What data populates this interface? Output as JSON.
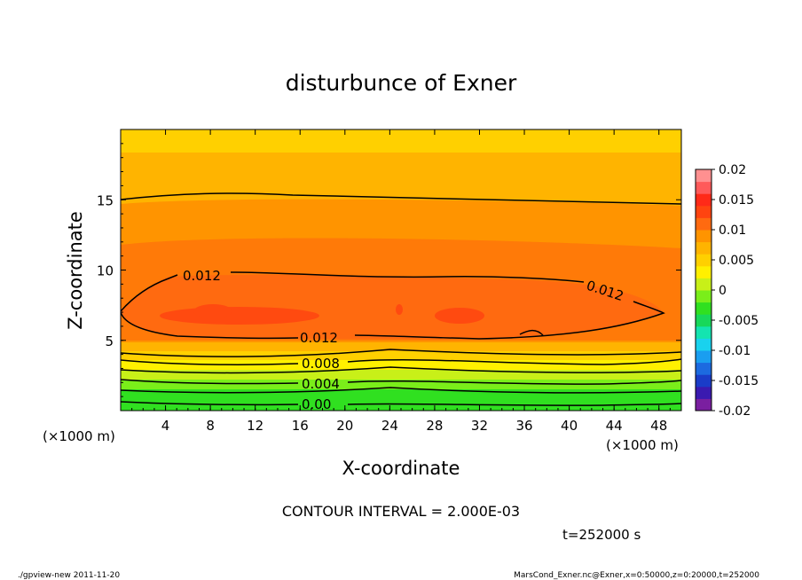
{
  "chart_data": {
    "type": "contour",
    "title": "disturbunce of Exner",
    "xlabel": "X-coordinate",
    "ylabel": "Z-coordinate",
    "x_unit_left": "(×1000 m)",
    "x_unit_right": "(×1000 m)",
    "xlim": [
      0,
      50
    ],
    "ylim": [
      0,
      20
    ],
    "x_ticks": [
      "4",
      "8",
      "12",
      "16",
      "20",
      "24",
      "28",
      "32",
      "36",
      "40",
      "44",
      "48"
    ],
    "y_ticks": [
      "5",
      "10",
      "15"
    ],
    "colorbar": {
      "ticks": [
        "0.02",
        "0.015",
        "0.01",
        "0.005",
        "0",
        "-0.005",
        "-0.01",
        "-0.015",
        "-0.02"
      ],
      "range": [
        -0.02,
        0.02
      ],
      "colors": [
        "#7a1fa0",
        "#3a1ab0",
        "#1a3cc8",
        "#1c6ae0",
        "#1a9ef0",
        "#19d2ee",
        "#14e4b0",
        "#18d85a",
        "#30e020",
        "#7aee1a",
        "#c8f018",
        "#fff000",
        "#ffd000",
        "#ffb400",
        "#ff9400",
        "#ff6a10",
        "#ff4410",
        "#ff2a18",
        "#ff5a5a",
        "#ff9090"
      ]
    },
    "contour_labels": [
      "0.012",
      "0.012",
      "0.012",
      "0.008",
      "0.004",
      "0.00"
    ],
    "contour_interval_text": "CONTOUR INTERVAL = 2.000E-03",
    "time_text": "t=252000 s"
  },
  "footer": {
    "left": "./gpview-new  2011-11-20",
    "right": "MarsCond_Exner.nc@Exner,x=0:50000,z=0:20000,t=252000"
  }
}
